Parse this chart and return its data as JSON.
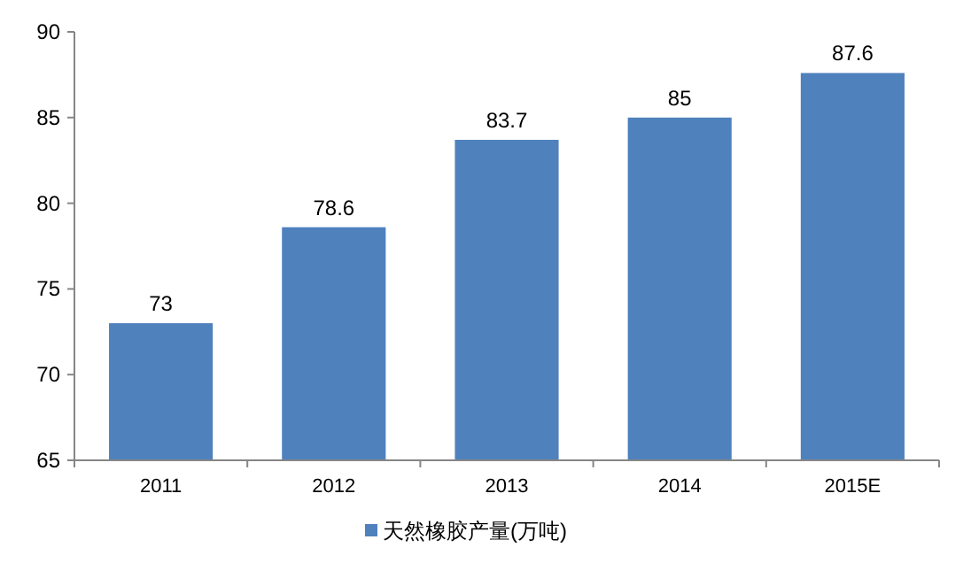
{
  "chart_data": {
    "type": "bar",
    "categories": [
      "2011",
      "2012",
      "2013",
      "2014",
      "2015E"
    ],
    "series": [
      {
        "name": "天然橡胶产量(万吨)",
        "color": "#4f81bd",
        "values": [
          73,
          78.6,
          83.7,
          85,
          87.6
        ]
      }
    ],
    "ylim": [
      65,
      90
    ],
    "yticks": [
      65,
      70,
      75,
      80,
      85,
      90
    ],
    "data_labels": true,
    "legend": "bottom"
  }
}
